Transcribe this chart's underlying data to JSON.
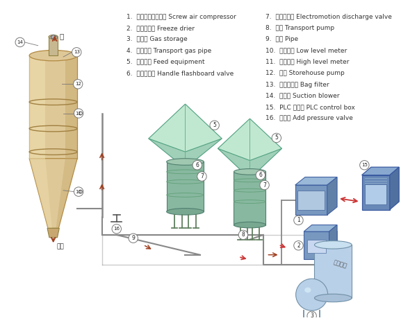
{
  "background": "#ffffff",
  "legend_items_left": [
    "1.  肆杆式空气压缩机 Screw air compressor",
    "2.  冷冻干燥机 Freeze drier",
    "3.  储气罐 Gas storage",
    "4.  输气管道 Transport gas pipe",
    "5.  排料装置 Feed equipment",
    "6.  手动插板阀 Handle flashboard valve"
  ],
  "legend_items_right": [
    "7.  电动卸料阀 Electromotion discharge valve",
    "8.  仓泵 Transport pump",
    "9.  管道 Pipe",
    "10.  低料位计 Low level meter",
    "11.  高料位计 High level meter",
    "12.  料仓 Storehouse pump",
    "13.  袋式过滤器 Bag filter",
    "14.  引风机 Suction blower",
    "15.  PLC 控制筱 PLC control box",
    "16.  增压器 Add pressure valve"
  ]
}
